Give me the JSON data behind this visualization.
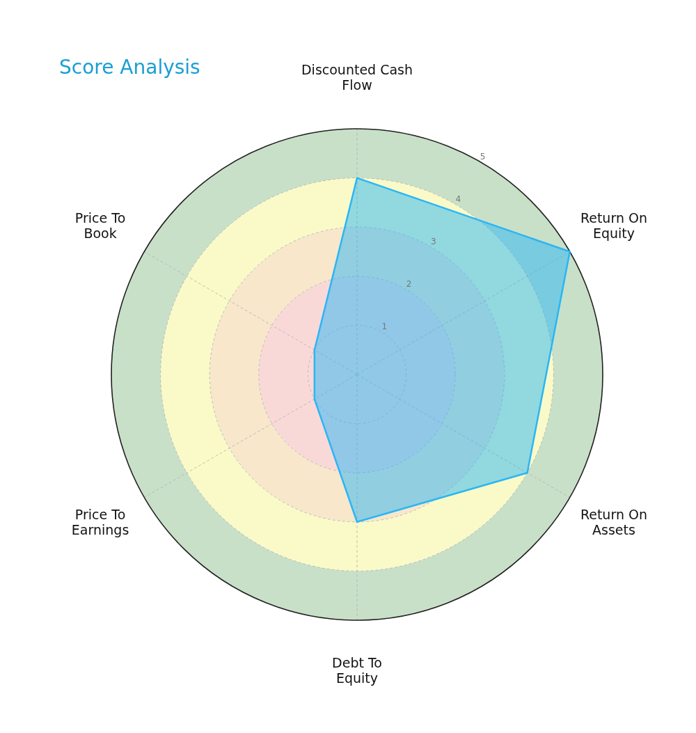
{
  "chart_data": {
    "type": "radar",
    "title": "Score Analysis",
    "categories": [
      "Discounted Cash Flow",
      "Return On Equity",
      "Return On Assets",
      "Debt To Equity",
      "Price To Earnings",
      "Price To Book"
    ],
    "series": [
      {
        "color": "#29b6f6",
        "values": [
          4,
          5,
          4,
          3,
          1,
          1
        ]
      }
    ],
    "ylim": [
      0,
      5
    ],
    "yticks": [
      1,
      2,
      3,
      4,
      5
    ],
    "grid": true
  }
}
